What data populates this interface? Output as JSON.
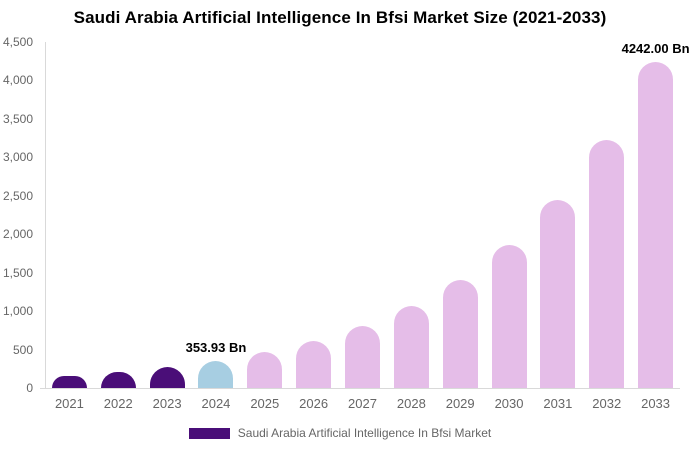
{
  "title": "Saudi Arabia Artificial Intelligence In Bfsi Market Size (2021-2033)",
  "legend": {
    "label": "Saudi Arabia Artificial Intelligence In Bfsi Market",
    "swatch_color": "#4A0E78"
  },
  "colors": {
    "past": "#4A0E78",
    "current": "#A7CEE2",
    "forecast": "#E5BDE8",
    "axis_line": "#D9D9D9",
    "tick_text": "#666666",
    "data_label_text": "#000000",
    "title_text": "#000000"
  },
  "chart_data": {
    "type": "bar",
    "title": "Saudi Arabia Artificial Intelligence In Bfsi Market Size (2021-2033)",
    "unit": "Bn",
    "categories": [
      "2021",
      "2022",
      "2023",
      "2024",
      "2025",
      "2026",
      "2027",
      "2028",
      "2029",
      "2030",
      "2031",
      "2032",
      "2033"
    ],
    "values": [
      155,
      204,
      269,
      353.93,
      466,
      614,
      810,
      1068,
      1408,
      1856,
      2446,
      3224,
      4242
    ],
    "bar_roles": [
      "past",
      "past",
      "past",
      "current",
      "forecast",
      "forecast",
      "forecast",
      "forecast",
      "forecast",
      "forecast",
      "forecast",
      "forecast",
      "forecast"
    ],
    "data_labels": [
      {
        "index": 3,
        "text": "353.93 Bn"
      },
      {
        "index": 12,
        "text": "4242.00 Bn"
      }
    ],
    "ylim": [
      0,
      4500
    ],
    "ytick_step": 500,
    "yticks": [
      "0",
      "500",
      "1,000",
      "1,500",
      "2,000",
      "2,500",
      "3,000",
      "3,500",
      "4,000",
      "4,500"
    ],
    "grid": false,
    "legend_position": "bottom",
    "legend_entries": [
      "Saudi Arabia Artificial Intelligence In Bfsi Market"
    ]
  }
}
